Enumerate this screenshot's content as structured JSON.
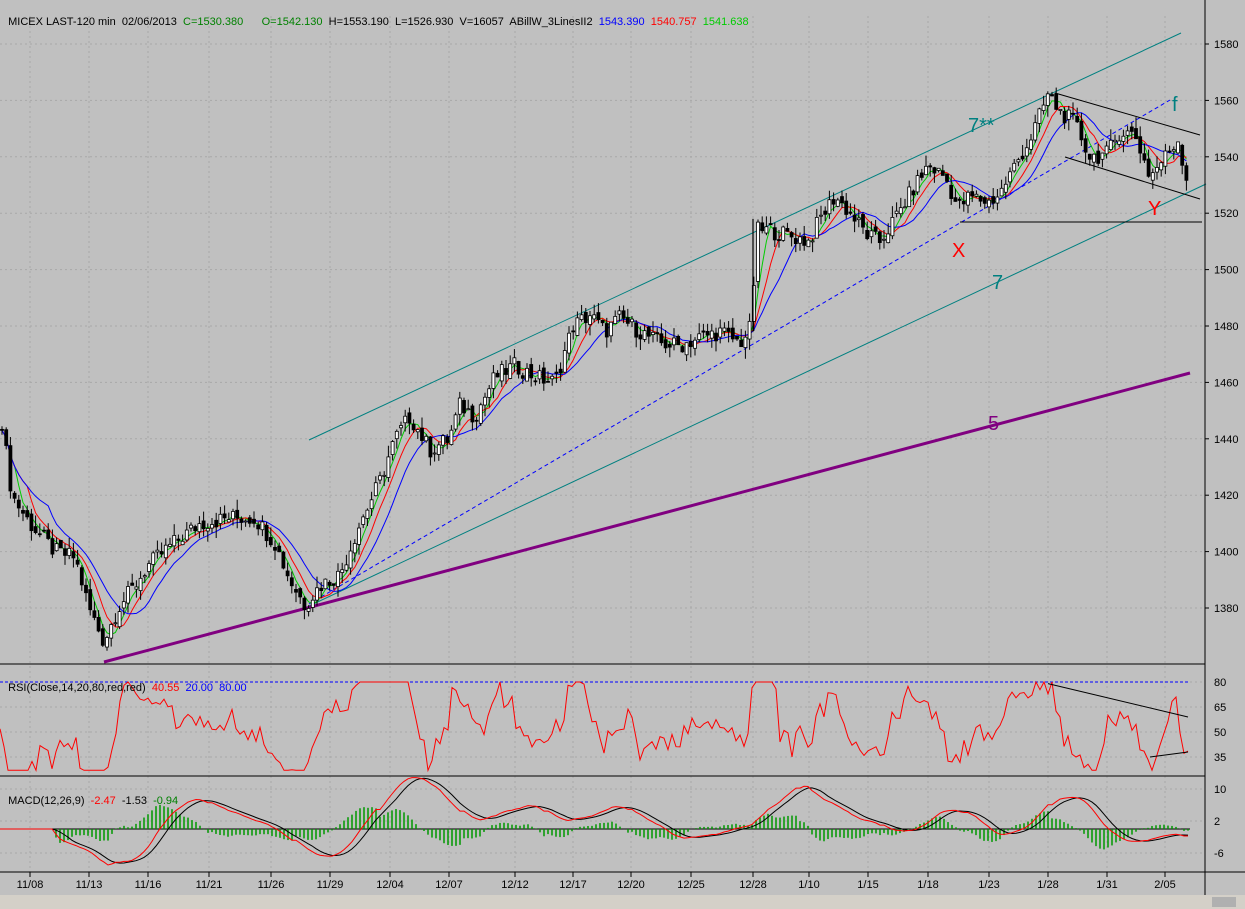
{
  "header": {
    "symbol": "MICEX LAST-120 min",
    "date": "02/06/2013",
    "close": "C=1530.380",
    "open": "O=1542.130",
    "high": "H=1553.190",
    "low": "L=1526.930",
    "volume": "V=16057",
    "indicator": "ABillW_3LinesII2",
    "line1": "1543.390",
    "line2": "1540.757",
    "line3": "1541.638"
  },
  "rsi_header": {
    "label": "RSI(Close,14,20,80,red,red)",
    "value": "40.55",
    "low": "20.00",
    "high": "80.00"
  },
  "macd_header": {
    "label": "MACD(12,26,9)",
    "v1": "-2.47",
    "v2": "-1.53",
    "v3": "-0.94"
  },
  "annotations": {
    "x": "X",
    "y": "Y",
    "f": "f",
    "ch7s": "7**",
    "ch7": "7",
    "tl5": "5"
  },
  "colors": {
    "bg": "#c0c0c0",
    "candle": "#000000",
    "green_line": "#00cc00",
    "red_line": "#ff0000",
    "blue_line": "#0000ff",
    "channel": "#008080",
    "trend5": "#800080",
    "label_red": "#ff0000"
  },
  "chart_data": [
    {
      "type": "candlestick",
      "title": "MICEX LAST-120 min",
      "x_tick_labels": [
        "11/08",
        "11/13",
        "11/16",
        "11/21",
        "11/26",
        "11/29",
        "12/04",
        "12/07",
        "12/12",
        "12/17",
        "12/20",
        "12/25",
        "12/28",
        "1/10",
        "1/15",
        "1/18",
        "1/23",
        "1/28",
        "1/31",
        "2/05"
      ],
      "y_tick_labels": [
        1380,
        1400,
        1420,
        1440,
        1460,
        1480,
        1500,
        1520,
        1540,
        1560,
        1580
      ],
      "ylim": [
        1362,
        1592
      ],
      "series_close_anchors": [
        {
          "x": "11/08",
          "y": 1440
        },
        {
          "x": "11/13",
          "y": 1370
        },
        {
          "x": "11/16",
          "y": 1395
        },
        {
          "x": "11/21",
          "y": 1412
        },
        {
          "x": "11/26",
          "y": 1408
        },
        {
          "x": "11/29",
          "y": 1390
        },
        {
          "x": "12/04",
          "y": 1440
        },
        {
          "x": "12/07",
          "y": 1440
        },
        {
          "x": "12/12",
          "y": 1468
        },
        {
          "x": "12/17",
          "y": 1484
        },
        {
          "x": "12/20",
          "y": 1479
        },
        {
          "x": "12/25",
          "y": 1475
        },
        {
          "x": "12/28",
          "y": 1514
        },
        {
          "x": "1/10",
          "y": 1510
        },
        {
          "x": "1/15",
          "y": 1510
        },
        {
          "x": "1/18",
          "y": 1525
        },
        {
          "x": "1/23",
          "y": 1530
        },
        {
          "x": "1/28",
          "y": 1562
        },
        {
          "x": "1/31",
          "y": 1543
        },
        {
          "x": "2/05",
          "y": 1530
        }
      ],
      "moving_averages": [
        "green",
        "red",
        "blue"
      ]
    },
    {
      "type": "line",
      "title": "RSI(Close,14,20,80,red,red)",
      "y_tick_labels": [
        35,
        50,
        65,
        80
      ],
      "levels": [
        20,
        80
      ],
      "ylim": [
        20,
        80
      ],
      "last_value": 40.55
    },
    {
      "type": "line",
      "title": "MACD(12,26,9)",
      "y_tick_labels": [
        -6,
        2,
        10
      ],
      "ylim": [
        -10,
        14
      ],
      "last_values": [
        -2.47,
        -1.53,
        -0.94
      ]
    }
  ]
}
